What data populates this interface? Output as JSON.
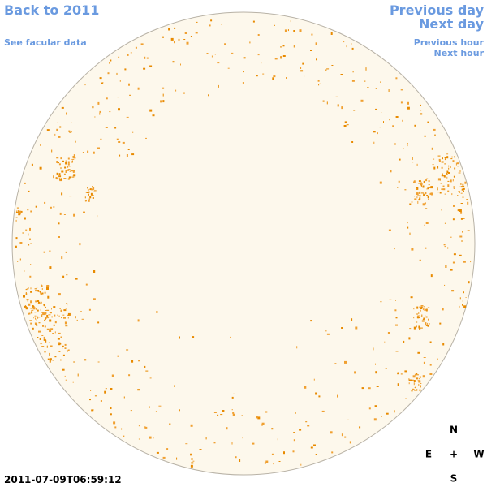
{
  "navigation": {
    "back_to_year": "Back to 2011",
    "see_facular_data": "See facular data",
    "previous_day": "Previous day",
    "next_day": "Next day",
    "previous_hour": "Previous hour",
    "next_hour": "Next hour"
  },
  "compass": {
    "north": "N",
    "east": "E",
    "center": "+",
    "west": "W",
    "south": "S"
  },
  "timestamp": "2011-07-09T06:59:12"
}
